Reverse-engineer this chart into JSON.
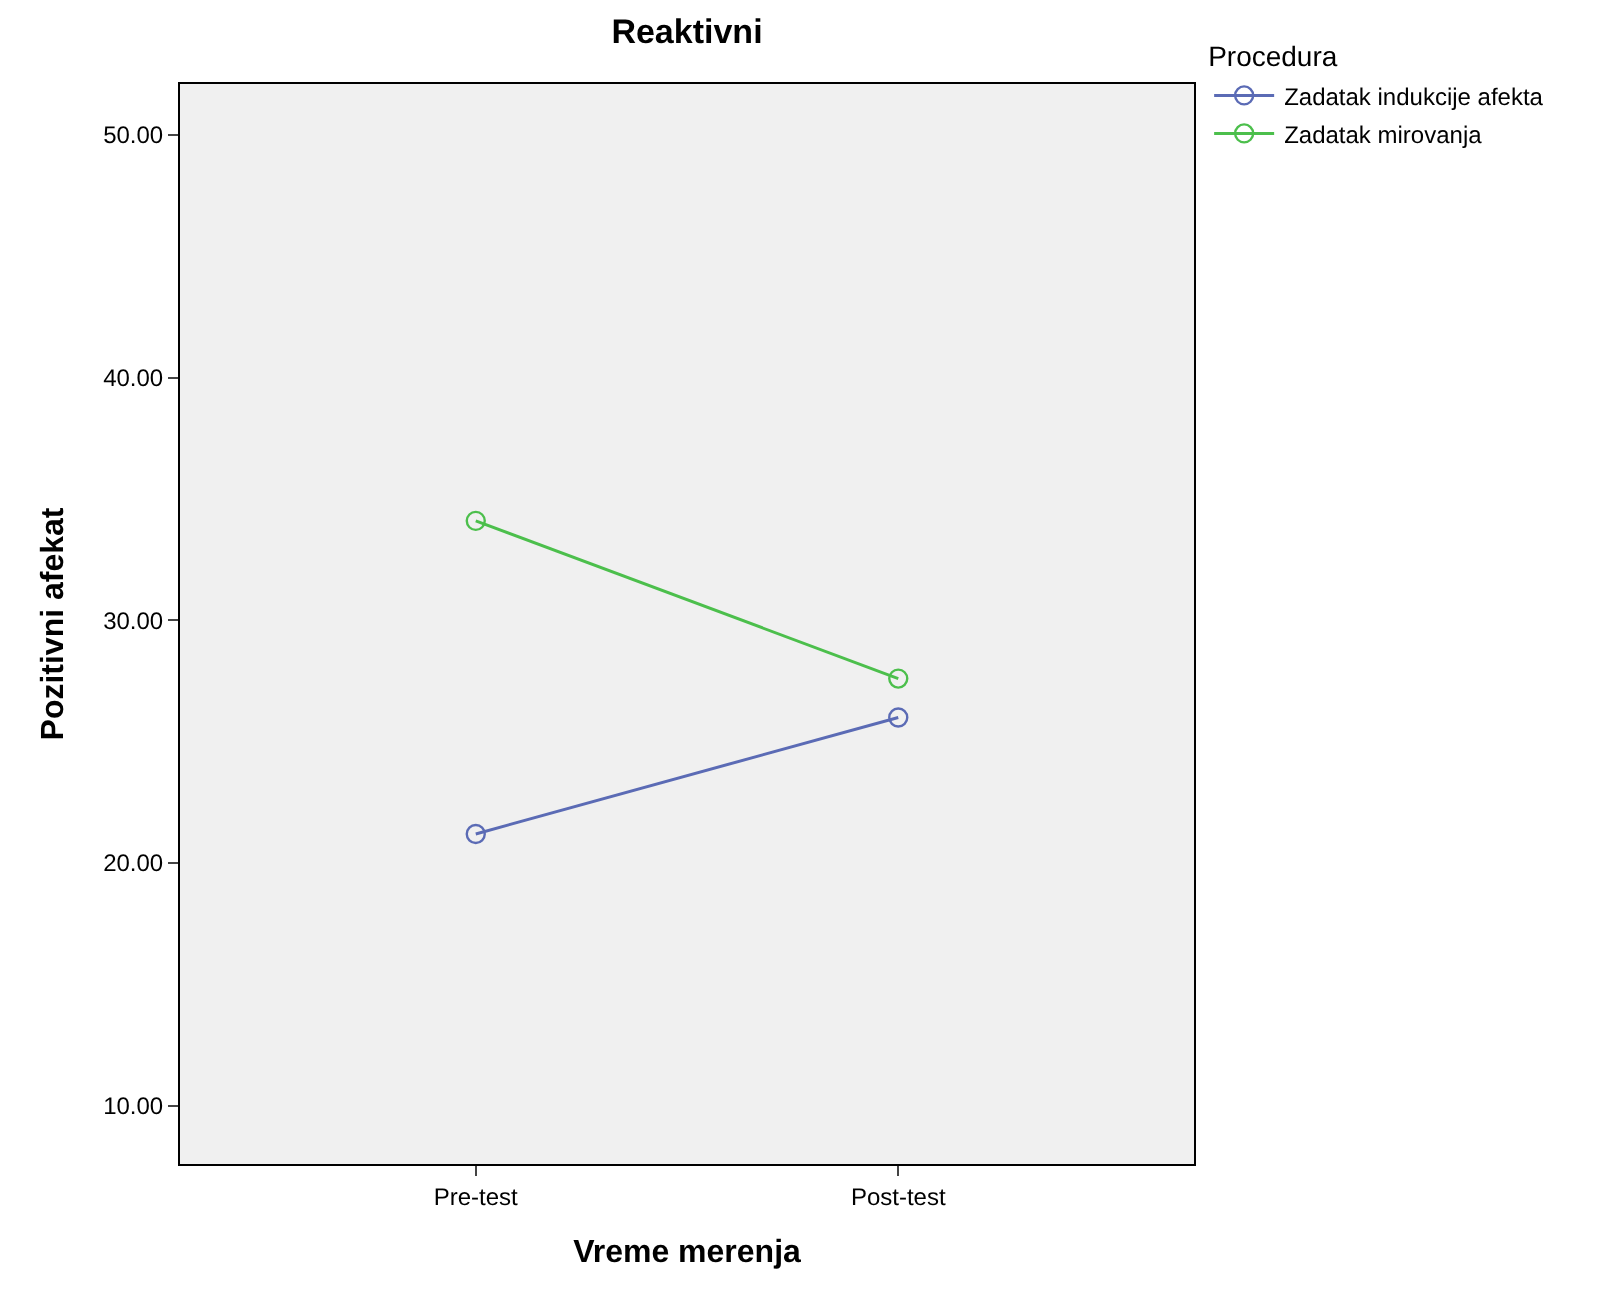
{
  "chart_data": {
    "type": "line",
    "title": "Reaktivni",
    "xlabel": "Vreme merenja",
    "ylabel": "Pozitivni afekat",
    "legend_title": "Procedura",
    "categories": [
      "Pre-test",
      "Post-test"
    ],
    "series": [
      {
        "name": "Zadatak indukcije afekta",
        "color": "#5b6bb5",
        "values": [
          21.2,
          26.0
        ]
      },
      {
        "name": "Zadatak mirovanja",
        "color": "#4cbf4c",
        "values": [
          34.1,
          27.6
        ]
      }
    ],
    "ylim": [
      7.6,
      52.1
    ],
    "yticks": [
      {
        "value": 10,
        "label": "10.00"
      },
      {
        "value": 20,
        "label": "20.00"
      },
      {
        "value": 30,
        "label": "30.00"
      },
      {
        "value": 40,
        "label": "40.00"
      },
      {
        "value": 50,
        "label": "50.00"
      }
    ],
    "grid": false,
    "legend": "top right",
    "marker": "circle",
    "line_style": "solid"
  }
}
